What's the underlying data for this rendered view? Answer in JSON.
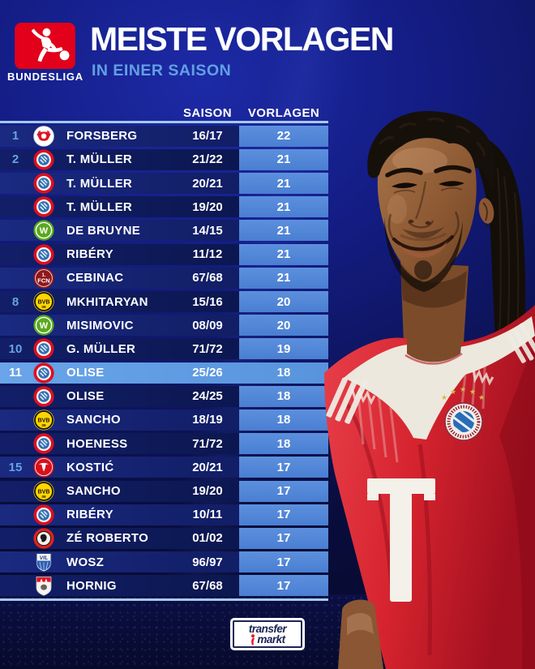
{
  "header": {
    "league_logo_text": "BUNDESLIGA",
    "title": "MEISTE VORLAGEN",
    "subtitle": "IN EINER SAISON"
  },
  "chart_data": {
    "type": "table",
    "title": "MEISTE VORLAGEN",
    "subtitle": "IN EINER SAISON",
    "columns": [
      "SAISON",
      "VORLAGEN"
    ],
    "rows": [
      {
        "rank": "1",
        "club": "leipzig",
        "player": "FORSBERG",
        "saison": "16/17",
        "vorlagen": "22",
        "highlight": false
      },
      {
        "rank": "2",
        "club": "bayern",
        "player": "T. MÜLLER",
        "saison": "21/22",
        "vorlagen": "21",
        "highlight": false
      },
      {
        "rank": "",
        "club": "bayern",
        "player": "T. MÜLLER",
        "saison": "20/21",
        "vorlagen": "21",
        "highlight": false
      },
      {
        "rank": "",
        "club": "bayern",
        "player": "T. MÜLLER",
        "saison": "19/20",
        "vorlagen": "21",
        "highlight": false
      },
      {
        "rank": "",
        "club": "wolfsburg",
        "player": "DE BRUYNE",
        "saison": "14/15",
        "vorlagen": "21",
        "highlight": false
      },
      {
        "rank": "",
        "club": "bayern",
        "player": "RIBÉRY",
        "saison": "11/12",
        "vorlagen": "21",
        "highlight": false
      },
      {
        "rank": "",
        "club": "nuernberg",
        "player": "CEBINAC",
        "saison": "67/68",
        "vorlagen": "21",
        "highlight": false
      },
      {
        "rank": "8",
        "club": "dortmund",
        "player": "MKHITARYAN",
        "saison": "15/16",
        "vorlagen": "20",
        "highlight": false
      },
      {
        "rank": "",
        "club": "wolfsburg",
        "player": "MISIMOVIC",
        "saison": "08/09",
        "vorlagen": "20",
        "highlight": false
      },
      {
        "rank": "10",
        "club": "bayern",
        "player": "G. MÜLLER",
        "saison": "71/72",
        "vorlagen": "19",
        "highlight": false
      },
      {
        "rank": "11",
        "club": "bayern",
        "player": "OLISE",
        "saison": "25/26",
        "vorlagen": "18",
        "highlight": true
      },
      {
        "rank": "",
        "club": "bayern",
        "player": "OLISE",
        "saison": "24/25",
        "vorlagen": "18",
        "highlight": false
      },
      {
        "rank": "",
        "club": "dortmund",
        "player": "SANCHO",
        "saison": "18/19",
        "vorlagen": "18",
        "highlight": false
      },
      {
        "rank": "",
        "club": "bayern",
        "player": "HOENESS",
        "saison": "71/72",
        "vorlagen": "18",
        "highlight": false
      },
      {
        "rank": "15",
        "club": "frankfurt",
        "player": "KOSTIĆ",
        "saison": "20/21",
        "vorlagen": "17",
        "highlight": false
      },
      {
        "rank": "",
        "club": "dortmund",
        "player": "SANCHO",
        "saison": "19/20",
        "vorlagen": "17",
        "highlight": false
      },
      {
        "rank": "",
        "club": "bayern",
        "player": "RIBÉRY",
        "saison": "10/11",
        "vorlagen": "17",
        "highlight": false
      },
      {
        "rank": "",
        "club": "leverkusen",
        "player": "ZÉ ROBERTO",
        "saison": "01/02",
        "vorlagen": "17",
        "highlight": false
      },
      {
        "rank": "",
        "club": "bochum",
        "player": "WOSZ",
        "saison": "96/97",
        "vorlagen": "17",
        "highlight": false
      },
      {
        "rank": "",
        "club": "koeln",
        "player": "HORNIG",
        "saison": "67/68",
        "vorlagen": "17",
        "highlight": false
      }
    ]
  },
  "footer": {
    "brand_line1": "transfer",
    "brand_line2": "markt"
  },
  "colors": {
    "background_blue": "#141d85",
    "dark_navy": "#090d3c",
    "row_odd": "#13206b",
    "row_even": "#0d1955",
    "row_highlight": "#5b9ae1",
    "assists_cell": "#4b81d6",
    "table_line": "#a5c9f2",
    "column_header_text": "#85b4ea",
    "rank_text": "#64a3e4",
    "subtitle_text": "#61a0e2",
    "bundesliga_red": "#e2001a",
    "jersey_red": "#d6242f"
  }
}
